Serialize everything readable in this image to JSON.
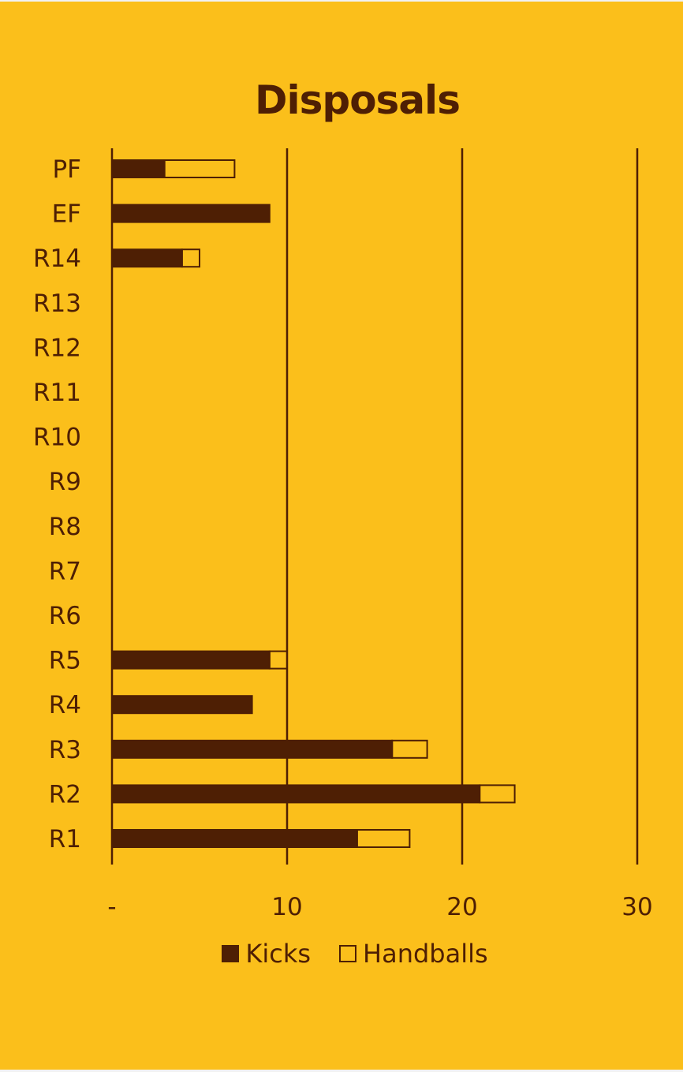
{
  "chart_data": {
    "type": "bar",
    "orientation": "horizontal",
    "stacked": true,
    "title": "Disposals",
    "categories": [
      "PF",
      "EF",
      "R14",
      "R13",
      "R12",
      "R11",
      "R10",
      "R9",
      "R8",
      "R7",
      "R6",
      "R5",
      "R4",
      "R3",
      "R2",
      "R1"
    ],
    "series": [
      {
        "name": "Kicks",
        "color": "#4e1f04",
        "fill": "solid",
        "values": [
          3,
          9,
          4,
          0,
          0,
          0,
          0,
          0,
          0,
          0,
          0,
          9,
          8,
          16,
          21,
          14
        ]
      },
      {
        "name": "Handballs",
        "color": "#4e1f04",
        "fill": "hollow",
        "values": [
          4,
          0,
          1,
          0,
          0,
          0,
          0,
          0,
          0,
          0,
          0,
          1,
          0,
          2,
          2,
          3
        ]
      }
    ],
    "xlim": [
      0,
      30
    ],
    "xticks": [
      "-",
      "10",
      "20",
      "30"
    ],
    "grid": true,
    "legend": "bottom"
  }
}
